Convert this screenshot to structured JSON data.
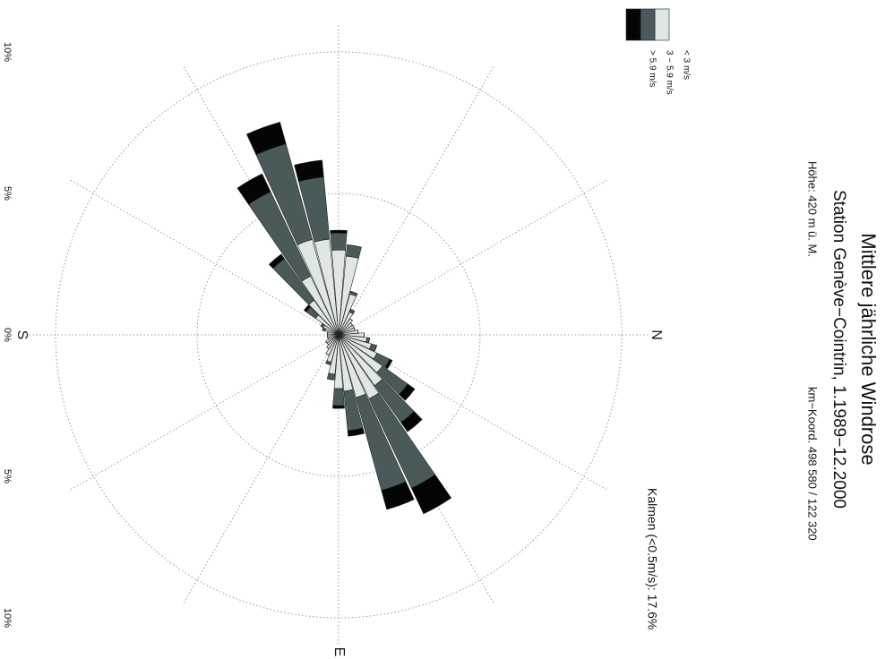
{
  "chart_data": {
    "type": "windrose",
    "title": "Mittlere jährliche Windrose",
    "subtitle": "Station Genève−Cointrin, 1.1989−12.2000",
    "annotations": [
      "Höhe: 420 m ü. M.",
      "km−Koord. 498 580 / 122 320",
      "Kalmen (<0.5m/s): 17.6%"
    ],
    "directions": [
      0,
      10,
      20,
      30,
      40,
      50,
      60,
      70,
      80,
      90,
      100,
      110,
      120,
      130,
      140,
      150,
      160,
      170,
      180,
      190,
      200,
      210,
      220,
      230,
      240,
      250,
      260,
      270,
      280,
      290,
      300,
      310,
      320,
      330,
      340,
      350
    ],
    "series": [
      {
        "name": "< 3 m/s",
        "color": "#dfe6e4",
        "values": [
          0.9,
          1.0,
          1.2,
          1.5,
          1.9,
          2.2,
          2.5,
          2.3,
          2.0,
          1.9,
          1.4,
          1.0,
          0.8,
          0.6,
          0.5,
          0.5,
          0.4,
          0.4,
          0.4,
          0.4,
          0.5,
          0.6,
          1.0,
          1.5,
          2.3,
          3.5,
          3.4,
          3.0,
          2.8,
          1.5,
          0.9,
          0.7,
          0.6,
          0.6,
          0.6,
          0.7
        ]
      },
      {
        "name": "3 − 5.9 m/s",
        "color": "#4a5a5a",
        "values": [
          0,
          0.1,
          0.2,
          0.5,
          1.1,
          1.6,
          3.5,
          3.4,
          1.4,
          0.6,
          0.2,
          0.1,
          0,
          0,
          0,
          0,
          0,
          0,
          0,
          0,
          0.1,
          0.1,
          0.4,
          1.8,
          3.3,
          3.5,
          2.2,
          0.6,
          0.4,
          0.1,
          0.1,
          0,
          0,
          0,
          0,
          0
        ]
      },
      {
        "name": "> 5.9 m/s",
        "color": "#050505",
        "values": [
          0,
          0,
          0,
          0.1,
          0.3,
          0.4,
          1.0,
          0.7,
          0.2,
          0.1,
          0,
          0,
          0,
          0,
          0,
          0,
          0,
          0,
          0,
          0,
          0,
          0,
          0.1,
          0.2,
          0.7,
          0.8,
          0.6,
          0.1,
          0,
          0,
          0,
          0,
          0,
          0,
          0,
          0
        ]
      }
    ],
    "rlim": [
      0,
      10
    ],
    "rticks": [
      {
        "value": 0,
        "label": "0%"
      },
      {
        "value": 5,
        "label": "5%"
      },
      {
        "value": 10,
        "label": "10%"
      }
    ],
    "compass_labels": [
      {
        "value": 0,
        "label": "N"
      },
      {
        "value": 90,
        "label": "E"
      },
      {
        "value": 180,
        "label": "S"
      }
    ],
    "grid": true
  }
}
